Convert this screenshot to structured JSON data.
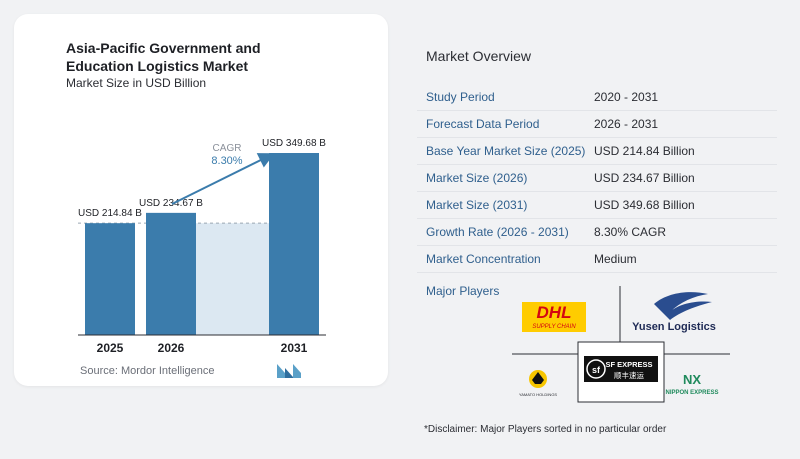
{
  "chart_data": {
    "type": "bar",
    "title": "Asia-Pacific Government and Education Logistics Market",
    "subtitle": "Market Size in USD Billion",
    "categories": [
      "2025",
      "2026",
      "2031"
    ],
    "values": [
      214.84,
      234.67,
      349.68
    ],
    "value_labels": [
      "USD 214.84 B",
      "USD 234.67 B",
      "USD 349.68 B"
    ],
    "cagr_label": "CAGR",
    "cagr_value": "8.30%",
    "ylim": [
      0,
      349.68
    ],
    "bar_color": "#3b7cac",
    "band_color": "#dce8f2"
  },
  "source": "Source:  Mordor Intelligence",
  "overview": {
    "title": "Market Overview",
    "rows": [
      {
        "label": "Study Period",
        "value": "2020 - 2031"
      },
      {
        "label": "Forecast Data Period",
        "value": "2026 - 2031"
      },
      {
        "label": "Base Year Market Size (2025)",
        "value": "USD 214.84 Billion"
      },
      {
        "label": "Market Size (2026)",
        "value": "USD 234.67 Billion"
      },
      {
        "label": "Market Size (2031)",
        "value": "USD 349.68 Billion"
      },
      {
        "label": "Growth Rate (2026 - 2031)",
        "value": "8.30% CAGR"
      },
      {
        "label": "Market Concentration",
        "value": "Medium"
      }
    ]
  },
  "players": {
    "title": "Major Players",
    "logos": [
      {
        "name": "DHL",
        "tagline": "SUPPLY CHAIN"
      },
      {
        "name": "Yusen Logistics"
      },
      {
        "name": "YAMATO HOLDINGS"
      },
      {
        "name": "SF EXPRESS",
        "local": "顺丰速运"
      },
      {
        "name": "NX",
        "sub": "NIPPON EXPRESS"
      }
    ]
  },
  "disclaimer": "*Disclaimer: Major Players sorted in no particular order"
}
